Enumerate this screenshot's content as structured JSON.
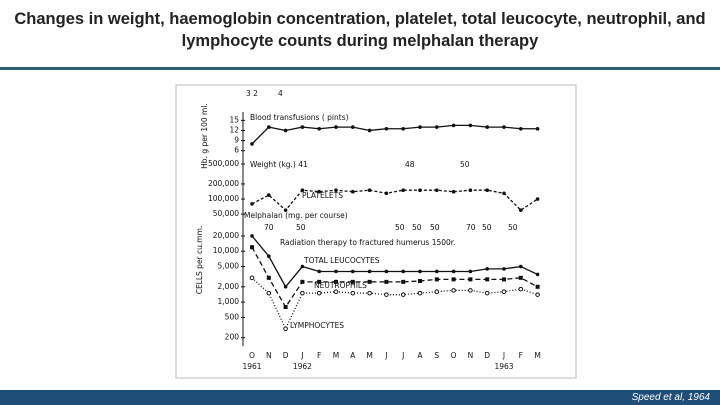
{
  "title": "Changes in weight, haemoglobin concentration, platelet, total leucocyte, neutrophil, and lymphocyte counts during melphalan therapy",
  "figure": {
    "type": "line",
    "categories": [
      "O",
      "N",
      "D",
      "J",
      "F",
      "M",
      "A",
      "M",
      "J",
      "J",
      "A",
      "S",
      "O",
      "N",
      "D",
      "J",
      "F",
      "M"
    ],
    "years": [
      "1961",
      "1962",
      "1963"
    ],
    "panels": [
      {
        "axis_label": "Hb. g per 100 ml.",
        "log": false,
        "ylim": [
          5,
          16
        ],
        "yticks": [
          15,
          12,
          9,
          6
        ],
        "series": [
          {
            "color": "#111111",
            "marker": "dot",
            "values": [
              8,
              13,
              12,
              13,
              12.5,
              13,
              13,
              12,
              12.5,
              12.5,
              13,
              13,
              13.5,
              13.5,
              13,
              13,
              12.5,
              12.5
            ]
          }
        ]
      },
      {
        "log": true,
        "ylim": [
          40000,
          600000
        ],
        "yticks": [
          {
            "value": 500000,
            "label": "500,000"
          },
          {
            "value": 200000,
            "label": "200,000"
          },
          {
            "value": 100000,
            "label": "100,000"
          },
          {
            "value": 50000,
            "label": "50,000"
          }
        ],
        "series": [
          {
            "name": "PLATELETS",
            "color": "#111111",
            "marker": "dot",
            "dash": "3,2",
            "values": [
              80000,
              120000,
              60000,
              150000,
              140000,
              150000,
              140000,
              150000,
              130000,
              150000,
              150000,
              150000,
              140000,
              150000,
              150000,
              130000,
              60000,
              100000
            ]
          }
        ]
      },
      {
        "axis_label": "CELLS per cu.mm.",
        "log": true,
        "ylim": [
          150,
          25000
        ],
        "yticks": [
          {
            "value": 20000,
            "label": "20,000"
          },
          {
            "value": 10000,
            "label": "10,000"
          },
          {
            "value": 5000,
            "label": "5,000"
          },
          {
            "value": 2000,
            "label": "2,000"
          },
          {
            "value": 1000,
            "label": "1,000"
          },
          500,
          200
        ],
        "series": [
          {
            "name": "TOTAL LEUCOCYTES",
            "color": "#111111",
            "marker": "dot",
            "values": [
              20000,
              8000,
              2000,
              5000,
              4000,
              4000,
              4000,
              4000,
              4000,
              4000,
              4000,
              4000,
              4000,
              4000,
              4500,
              4500,
              5000,
              3500
            ]
          },
          {
            "name": "NEUTROPHILS",
            "color": "#111111",
            "marker": "square",
            "dash": "5,3",
            "values": [
              12000,
              3000,
              800,
              2500,
              2500,
              2500,
              2500,
              2500,
              2500,
              2500,
              2600,
              2800,
              2800,
              2800,
              2800,
              2800,
              3000,
              2000
            ]
          },
          {
            "name": "LYMPHOCYTES",
            "color": "#111111",
            "marker": "open",
            "dash": "1,2",
            "values": [
              3000,
              1500,
              300,
              1500,
              1500,
              1600,
              1500,
              1500,
              1400,
              1400,
              1500,
              1600,
              1700,
              1700,
              1500,
              1600,
              1800,
              1400
            ]
          }
        ]
      }
    ],
    "annotations": {
      "transfusion_counts": [
        "3 2",
        "4"
      ],
      "transfusions": "Blood transfusions ( pints)",
      "weight": "Weight (kg.) 41",
      "weights": [
        "48",
        "50"
      ],
      "melphalan": "Melphalan (mg. per course)",
      "doses": [
        "70",
        "50",
        "50",
        "50",
        "50",
        "70",
        "50",
        "50"
      ],
      "radiation": "Radiation therapy to fractured humerus 1500r."
    }
  },
  "citation": "Speed et al, 1964"
}
